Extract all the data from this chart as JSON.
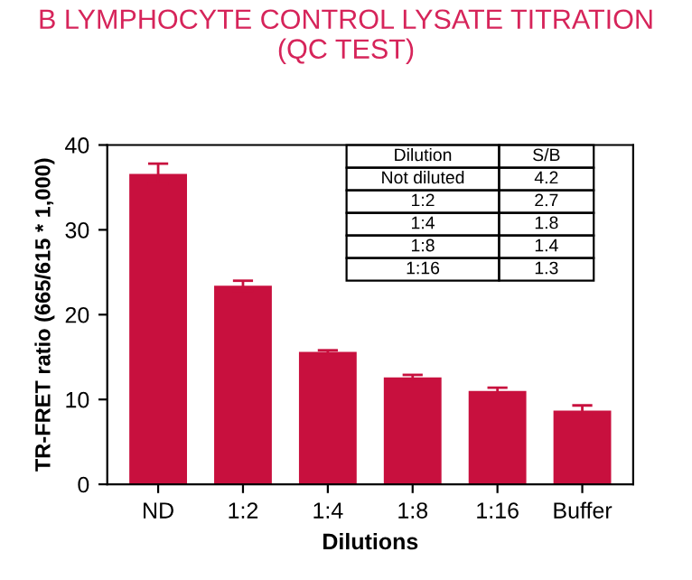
{
  "chart_data": {
    "type": "bar",
    "title": "B LYMPHOCYTE CONTROL LYSATE TITRATION\n(QC TEST)",
    "xlabel": "Dilutions",
    "ylabel": "TR-FRET ratio (665/615 * 1,000)",
    "categories": [
      "ND",
      "1:2",
      "1:4",
      "1:8",
      "1:16",
      "Buffer"
    ],
    "values": [
      36.6,
      23.4,
      15.6,
      12.6,
      11.0,
      8.7
    ],
    "errors": [
      1.2,
      0.6,
      0.2,
      0.3,
      0.4,
      0.6
    ],
    "color": "#c8103e",
    "ylim": [
      0,
      40
    ],
    "yticks": [
      0,
      10,
      20,
      30,
      40
    ],
    "grid": false,
    "legend": false,
    "annotations": [
      "Dilution",
      "S/B",
      "Not diluted",
      "4.2",
      "1:2",
      "2.7",
      "1:4",
      "1.8",
      "1:8",
      "1.4",
      "1:16",
      "1.3"
    ]
  }
}
